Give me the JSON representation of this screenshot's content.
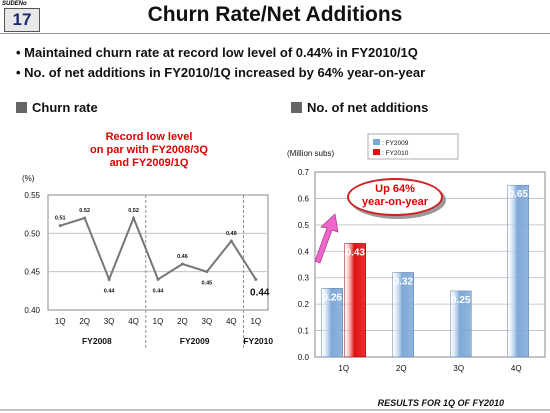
{
  "header": {
    "slide_label": "SUDENo",
    "slide_number": "17",
    "title": "Churn Rate/Net Additions"
  },
  "bullets": [
    "• Maintained churn rate at record low level of 0.44% in FY2010/1Q",
    "• No. of net additions in FY2010/1Q increased by 64% year-on-year"
  ],
  "footer": "RESULTS FOR 1Q OF FY2010",
  "chart_data": [
    {
      "type": "line",
      "section_title": "Churn rate",
      "ylabel": "(%)",
      "ylim": [
        0.4,
        0.55
      ],
      "yticks": [
        "0.55",
        "0.50",
        "0.45",
        "0.40"
      ],
      "categories": [
        "1Q",
        "2Q",
        "3Q",
        "4Q",
        "1Q",
        "2Q",
        "3Q",
        "4Q",
        "1Q"
      ],
      "groups": [
        "FY2008",
        "FY2009",
        "FY2010"
      ],
      "values": [
        0.51,
        0.52,
        0.44,
        0.52,
        0.44,
        0.46,
        0.45,
        0.49,
        0.44
      ],
      "labels": [
        "0.51",
        "0.52",
        "0.44",
        "0.52",
        "0.44",
        "0.46",
        "0.45",
        "0.49",
        "0.44"
      ],
      "annotation": [
        "Record low level",
        "on par with FY2008/3Q",
        "and FY2009/1Q"
      ],
      "grid": true,
      "line_color": "#777777"
    },
    {
      "type": "bar",
      "section_title": "No. of net additions",
      "ylabel": "(Million subs)",
      "ylim": [
        0,
        0.7
      ],
      "yticks": [
        "0.7",
        "0.6",
        "0.5",
        "0.4",
        "0.3",
        "0.2",
        "0.1",
        "0.0"
      ],
      "categories": [
        "1Q",
        "2Q",
        "3Q",
        "4Q"
      ],
      "series": [
        {
          "name": ": FY2009",
          "values": [
            0.26,
            0.32,
            0.25,
            0.65
          ],
          "labels": [
            "0.26",
            "0.32",
            "0.25",
            "0.65"
          ],
          "color": "#7fa9d8"
        },
        {
          "name": ": FY2010",
          "values": [
            0.43,
            null,
            null,
            null
          ],
          "labels": [
            "0.43",
            "",
            "",
            ""
          ],
          "color": "#e01010"
        }
      ],
      "annotation": [
        "Up 64%",
        "year-on-year"
      ],
      "legend_position": "top-center"
    }
  ]
}
